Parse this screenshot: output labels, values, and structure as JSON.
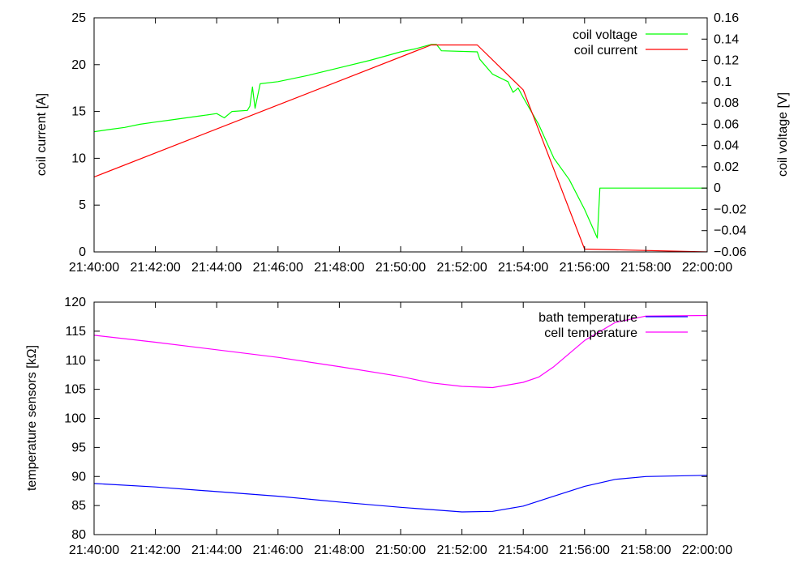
{
  "chart_data": [
    {
      "type": "line",
      "title": "",
      "xlabel": "",
      "ylabel": "coil current [A]",
      "y2label": "coil voltage [V]",
      "xlim": [
        "21:40:00",
        "22:00:00"
      ],
      "ylim": [
        0,
        25
      ],
      "y2lim": [
        -0.06,
        0.16
      ],
      "x_ticks": [
        "21:40:00",
        "21:42:00",
        "21:44:00",
        "21:46:00",
        "21:48:00",
        "21:50:00",
        "21:52:00",
        "21:54:00",
        "21:56:00",
        "21:58:00",
        "22:00:00"
      ],
      "y_ticks": [
        "0",
        "5",
        "10",
        "15",
        "20",
        "25"
      ],
      "y2_ticks": [
        "−0.06",
        "−0.04",
        "−0.02",
        "0",
        "0.02",
        "0.04",
        "0.06",
        "0.08",
        "0.1",
        "0.12",
        "0.14",
        "0.16"
      ],
      "grid": false,
      "legend": "top-right",
      "series": [
        {
          "name": "coil voltage",
          "axis": "right",
          "color": "#00ff00",
          "points": [
            [
              "21:40:00",
              0.053
            ],
            [
              "21:40:30",
              0.055
            ],
            [
              "21:41:00",
              0.057
            ],
            [
              "21:41:30",
              0.06
            ],
            [
              "21:42:00",
              0.062
            ],
            [
              "21:42:30",
              0.064
            ],
            [
              "21:43:00",
              0.066
            ],
            [
              "21:43:30",
              0.068
            ],
            [
              "21:44:00",
              0.07
            ],
            [
              "21:44:15",
              0.066
            ],
            [
              "21:44:30",
              0.072
            ],
            [
              "21:45:00",
              0.073
            ],
            [
              "21:45:05",
              0.077
            ],
            [
              "21:45:10",
              0.095
            ],
            [
              "21:45:15",
              0.075
            ],
            [
              "21:45:25",
              0.098
            ],
            [
              "21:46:00",
              0.1
            ],
            [
              "21:47:00",
              0.106
            ],
            [
              "21:48:00",
              0.113
            ],
            [
              "21:49:00",
              0.12
            ],
            [
              "21:50:00",
              0.128
            ],
            [
              "21:50:30",
              0.131
            ],
            [
              "21:51:00",
              0.135
            ],
            [
              "21:51:10",
              0.135
            ],
            [
              "21:51:20",
              0.129
            ],
            [
              "21:52:30",
              0.128
            ],
            [
              "21:52:35",
              0.121
            ],
            [
              "21:53:00",
              0.107
            ],
            [
              "21:53:30",
              0.1
            ],
            [
              "21:53:40",
              0.09
            ],
            [
              "21:53:50",
              0.094
            ],
            [
              "21:54:00",
              0.085
            ],
            [
              "21:54:30",
              0.06
            ],
            [
              "21:55:00",
              0.028
            ],
            [
              "21:55:30",
              0.008
            ],
            [
              "21:56:00",
              -0.02
            ],
            [
              "21:56:25",
              -0.047
            ],
            [
              "21:56:30",
              0.0
            ],
            [
              "22:00:00",
              0.0
            ]
          ]
        },
        {
          "name": "coil current",
          "axis": "left",
          "color": "#ff0000",
          "points": [
            [
              "21:40:00",
              8.0
            ],
            [
              "21:51:00",
              22.1
            ],
            [
              "21:52:30",
              22.1
            ],
            [
              "21:54:00",
              17.3
            ],
            [
              "21:56:00",
              0.3
            ],
            [
              "22:00:00",
              0.0
            ]
          ]
        }
      ]
    },
    {
      "type": "line",
      "title": "",
      "xlabel": "",
      "ylabel": "temperature sensors [kΩ]",
      "xlim": [
        "21:40:00",
        "22:00:00"
      ],
      "ylim": [
        80,
        120
      ],
      "x_ticks": [
        "21:40:00",
        "21:42:00",
        "21:44:00",
        "21:46:00",
        "21:48:00",
        "21:50:00",
        "21:52:00",
        "21:54:00",
        "21:56:00",
        "21:58:00",
        "22:00:00"
      ],
      "y_ticks": [
        "80",
        "85",
        "90",
        "95",
        "100",
        "105",
        "110",
        "115",
        "120"
      ],
      "grid": false,
      "legend": "top-right",
      "series": [
        {
          "name": "bath temperature",
          "color": "#0000ff",
          "points": [
            [
              "21:40:00",
              88.8
            ],
            [
              "21:42:00",
              88.2
            ],
            [
              "21:44:00",
              87.4
            ],
            [
              "21:46:00",
              86.6
            ],
            [
              "21:48:00",
              85.6
            ],
            [
              "21:50:00",
              84.7
            ],
            [
              "21:52:00",
              83.9
            ],
            [
              "21:53:00",
              84.0
            ],
            [
              "21:54:00",
              84.9
            ],
            [
              "21:55:00",
              86.6
            ],
            [
              "21:56:00",
              88.3
            ],
            [
              "21:57:00",
              89.5
            ],
            [
              "21:58:00",
              90.0
            ],
            [
              "22:00:00",
              90.2
            ]
          ]
        },
        {
          "name": "cell temperature",
          "color": "#ff00ff",
          "points": [
            [
              "21:40:00",
              114.3
            ],
            [
              "21:42:00",
              113.1
            ],
            [
              "21:44:00",
              111.8
            ],
            [
              "21:46:00",
              110.5
            ],
            [
              "21:48:00",
              108.9
            ],
            [
              "21:50:00",
              107.2
            ],
            [
              "21:51:00",
              106.1
            ],
            [
              "21:52:00",
              105.5
            ],
            [
              "21:53:00",
              105.3
            ],
            [
              "21:54:00",
              106.2
            ],
            [
              "21:54:30",
              107.1
            ],
            [
              "21:55:00",
              108.9
            ],
            [
              "21:56:00",
              113.4
            ],
            [
              "21:57:00",
              116.5
            ],
            [
              "21:58:00",
              117.6
            ],
            [
              "22:00:00",
              117.7
            ]
          ]
        }
      ]
    }
  ]
}
